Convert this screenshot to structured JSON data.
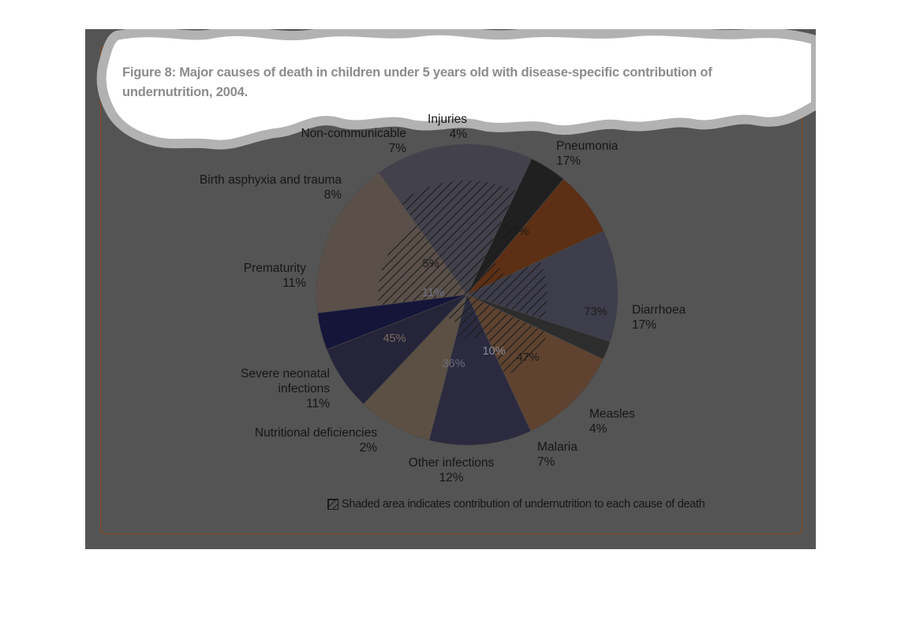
{
  "figure_title": "Figure 8: Major causes of death in children under 5 years old with disease-specific contribution of undernutrition, 2004.",
  "legend_text": "Shaded area indicates contribution of undernutrition to each cause of death",
  "colors": {
    "panel_background": "#545454",
    "frame_border": "#8a4a1e",
    "label_text": "#161616"
  },
  "chart_data": {
    "type": "pie",
    "title": "Figure 8: Major causes of death in children under 5 years old with disease-specific contribution of undernutrition, 2004.",
    "legend": "Shaded area indicates contribution of undernutrition to each cause of death",
    "slices": [
      {
        "name": "Pneumonia",
        "label": "Pneumonia",
        "value_label": "17%",
        "value": 17,
        "undernutrition_label": "44%",
        "undernutrition": 44,
        "color": "#5b5049",
        "inner_color": "#1c1c1c"
      },
      {
        "name": "Diarrhoea",
        "label": "Diarrhoea",
        "value_label": "17%",
        "value": 17,
        "undernutrition_label": "73%",
        "undernutrition": 73,
        "color": "#43414c",
        "inner_color": "#1c1c1c"
      },
      {
        "name": "Measles",
        "label": "Measles",
        "value_label": "4%",
        "value": 4,
        "undernutrition_label": "47%",
        "undernutrition": 47,
        "color": "#202020",
        "inner_color": "#1c1c1c"
      },
      {
        "name": "Malaria",
        "label": "Malaria",
        "value_label": "7%",
        "value": 7,
        "undernutrition_label": "10%",
        "undernutrition": 10,
        "color": "#5d2f14",
        "inner_color": "#8a8a92"
      },
      {
        "name": "Other infections",
        "label": "Other infections",
        "value_label": "12%",
        "value": 12,
        "undernutrition_label": "36%",
        "undernutrition": 36,
        "color": "#3e3d4b",
        "inner_color": "#6c6c78"
      },
      {
        "name": "Nutritional deficiencies",
        "label": "Nutritional deficiencies",
        "value_label": "2%",
        "value": 2,
        "undernutrition_label": "",
        "undernutrition": null,
        "color": "#2d2d2d",
        "inner_color": "#1c1c1c"
      },
      {
        "name": "Severe neonatal infections",
        "label": "Severe neonatal infections",
        "value_label": "11%",
        "value": 11,
        "undernutrition_label": "45%",
        "undernutrition": 45,
        "color": "#5f4330",
        "inner_color": "#7a6c60"
      },
      {
        "name": "Prematurity",
        "label": "Prematurity",
        "value_label": "11%",
        "value": 11,
        "undernutrition_label": "11%",
        "undernutrition": 11,
        "color": "#2b2a3f",
        "inner_color": "#6f6e83"
      },
      {
        "name": "Birth asphyxia and trauma",
        "label": "Birth asphyxia and trauma",
        "value_label": "8%",
        "value": 8,
        "undernutrition_label": "5%",
        "undernutrition": 5,
        "color": "#5c5045",
        "inner_color": "#1c1c1c"
      },
      {
        "name": "Non-communicable",
        "label": "Non-communicable",
        "value_label": "7%",
        "value": 7,
        "undernutrition_label": "",
        "undernutrition": null,
        "color": "#252439",
        "inner_color": "#1c1c1c"
      },
      {
        "name": "Injuries",
        "label": "Injuries",
        "value_label": "4%",
        "value": 4,
        "undernutrition_label": "",
        "undernutrition": null,
        "color": "#15153a",
        "inner_color": "#1c1c1c"
      }
    ]
  }
}
